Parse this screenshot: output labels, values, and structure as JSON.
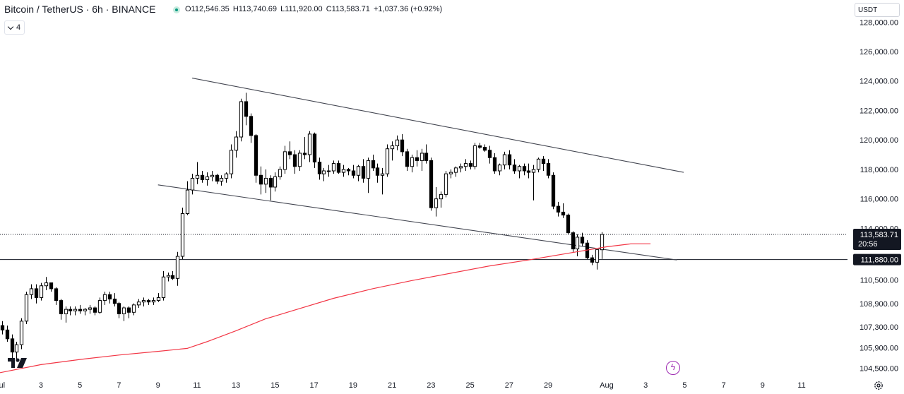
{
  "header": {
    "symbol": "Bitcoin / TetherUS · 6h · BINANCE",
    "open": "O112,546.35",
    "high": "H113,740.69",
    "low": "L111,920.00",
    "close": "C113,583.71",
    "change": "+1,037.36 (+0.92%)",
    "indicator_count": "4",
    "currency": "USDT"
  },
  "colors": {
    "up_candle": "#ffffff",
    "down_candle": "#000000",
    "moving_average": "#f23645",
    "trendline": "#434651",
    "horizontal_line": "#131722",
    "badge_bg": "#131722"
  },
  "chart_data": {
    "type": "candlestick",
    "title": "",
    "ylim": [
      104000,
      129500
    ],
    "y_ticks": [
      128000,
      126000,
      124000,
      122000,
      120000,
      118000,
      116000,
      114000,
      111880,
      110500,
      108900,
      107300,
      105900,
      104500
    ],
    "y_tick_labels": [
      "128,000.00",
      "126,000.00",
      "124,000.00",
      "122,000.00",
      "120,000.00",
      "118,000.00",
      "116,000.00",
      "114,000.00",
      "111,880.00",
      "110,500.00",
      "108,900.00",
      "107,300.00",
      "105,900.00",
      "104,500.00"
    ],
    "x_start_day": -0.1,
    "x_end_day": 43.35,
    "x_ticks": [
      {
        "day": 0,
        "label": "ul"
      },
      {
        "day": 2,
        "label": "3"
      },
      {
        "day": 4,
        "label": "5"
      },
      {
        "day": 6,
        "label": "7"
      },
      {
        "day": 8,
        "label": "9"
      },
      {
        "day": 10,
        "label": "11"
      },
      {
        "day": 12,
        "label": "13"
      },
      {
        "day": 14,
        "label": "15"
      },
      {
        "day": 16,
        "label": "17"
      },
      {
        "day": 18,
        "label": "19"
      },
      {
        "day": 20,
        "label": "21"
      },
      {
        "day": 22,
        "label": "23"
      },
      {
        "day": 24,
        "label": "25"
      },
      {
        "day": 26,
        "label": "27"
      },
      {
        "day": 28,
        "label": "29"
      },
      {
        "day": 31,
        "label": "Aug"
      },
      {
        "day": 33,
        "label": "3"
      },
      {
        "day": 35,
        "label": "5"
      },
      {
        "day": 37,
        "label": "7"
      },
      {
        "day": 39,
        "label": "9"
      },
      {
        "day": 41,
        "label": "11"
      }
    ],
    "candles_start_day": 0.0,
    "candle_step_day": 0.25,
    "candles": [
      [
        107400,
        107700,
        106800,
        107100
      ],
      [
        107100,
        107400,
        106300,
        106500
      ],
      [
        106500,
        106800,
        105200,
        105600
      ],
      [
        105600,
        106300,
        105100,
        106100
      ],
      [
        106100,
        107900,
        105800,
        107700
      ],
      [
        107700,
        109700,
        107500,
        109500
      ],
      [
        109500,
        110200,
        109200,
        109900
      ],
      [
        109900,
        110200,
        108900,
        109300
      ],
      [
        109300,
        110300,
        109100,
        110100
      ],
      [
        110100,
        110700,
        109800,
        110300
      ],
      [
        110300,
        110300,
        109700,
        109900
      ],
      [
        109900,
        110000,
        108800,
        109100
      ],
      [
        109100,
        109200,
        107800,
        108200
      ],
      [
        108200,
        108700,
        107600,
        108500
      ],
      [
        108500,
        108700,
        108100,
        108400
      ],
      [
        108400,
        108700,
        108100,
        108500
      ],
      [
        108500,
        108800,
        108200,
        108400
      ],
      [
        108400,
        108600,
        108100,
        108500
      ],
      [
        108500,
        108800,
        108200,
        108600
      ],
      [
        108600,
        108700,
        108100,
        108300
      ],
      [
        108300,
        109300,
        108200,
        109100
      ],
      [
        109100,
        109700,
        108800,
        109500
      ],
      [
        109500,
        109700,
        108900,
        109200
      ],
      [
        109200,
        109600,
        108700,
        108900
      ],
      [
        108900,
        109000,
        107900,
        108200
      ],
      [
        108200,
        108700,
        107700,
        108600
      ],
      [
        108600,
        108700,
        107900,
        108300
      ],
      [
        108300,
        108900,
        108100,
        108800
      ],
      [
        108800,
        109200,
        108600,
        109000
      ],
      [
        109000,
        109300,
        108700,
        109100
      ],
      [
        109100,
        109200,
        108800,
        109000
      ],
      [
        109000,
        109300,
        108800,
        109100
      ],
      [
        109100,
        109600,
        109000,
        109300
      ],
      [
        109300,
        111100,
        109100,
        110700
      ],
      [
        110700,
        111000,
        110400,
        110800
      ],
      [
        110800,
        111100,
        110500,
        110600
      ],
      [
        110600,
        112400,
        110100,
        112100
      ],
      [
        112100,
        115400,
        111900,
        115000
      ],
      [
        115000,
        117200,
        114900,
        116600
      ],
      [
        116600,
        117700,
        116300,
        117400
      ],
      [
        117400,
        118500,
        117000,
        117600
      ],
      [
        117600,
        117900,
        117100,
        117300
      ],
      [
        117300,
        117800,
        116900,
        117500
      ],
      [
        117500,
        117900,
        117200,
        117600
      ],
      [
        117600,
        117700,
        117000,
        117200
      ],
      [
        117200,
        117600,
        116900,
        117400
      ],
      [
        117400,
        117800,
        117100,
        117700
      ],
      [
        117700,
        119700,
        117400,
        119300
      ],
      [
        119300,
        120600,
        118800,
        120200
      ],
      [
        120200,
        122800,
        119900,
        122600
      ],
      [
        122600,
        123200,
        121000,
        121600
      ],
      [
        121600,
        121800,
        119800,
        120300
      ],
      [
        120300,
        120400,
        117100,
        117600
      ],
      [
        117600,
        118200,
        116300,
        117000
      ],
      [
        117000,
        118000,
        116400,
        117400
      ],
      [
        117400,
        117600,
        115900,
        116800
      ],
      [
        116800,
        117800,
        116500,
        117500
      ],
      [
        117500,
        118200,
        117300,
        118000
      ],
      [
        118000,
        119600,
        117700,
        119200
      ],
      [
        119200,
        119900,
        118700,
        119000
      ],
      [
        119000,
        119300,
        117700,
        118200
      ],
      [
        118200,
        119300,
        117900,
        119100
      ],
      [
        119100,
        120200,
        118700,
        119000
      ],
      [
        119000,
        120600,
        118500,
        120400
      ],
      [
        120400,
        120500,
        118100,
        118500
      ],
      [
        118500,
        118800,
        117300,
        117700
      ],
      [
        117700,
        118100,
        117200,
        117900
      ],
      [
        117900,
        118300,
        117500,
        117900
      ],
      [
        117900,
        118600,
        117700,
        118400
      ],
      [
        118400,
        118600,
        117700,
        117800
      ],
      [
        117800,
        118300,
        117500,
        118000
      ],
      [
        118000,
        118100,
        117600,
        117900
      ],
      [
        117900,
        118300,
        117400,
        117600
      ],
      [
        117600,
        118300,
        117200,
        118200
      ],
      [
        118200,
        118700,
        117100,
        117400
      ],
      [
        117400,
        118800,
        116400,
        118600
      ],
      [
        118600,
        119000,
        117900,
        118100
      ],
      [
        118100,
        118400,
        117100,
        117600
      ],
      [
        117600,
        118100,
        116300,
        117700
      ],
      [
        117700,
        119700,
        117500,
        119400
      ],
      [
        119400,
        119900,
        118600,
        119600
      ],
      [
        119600,
        120300,
        119300,
        120000
      ],
      [
        120000,
        120400,
        118900,
        119200
      ],
      [
        119200,
        119400,
        117900,
        118200
      ],
      [
        118200,
        119000,
        117800,
        118800
      ],
      [
        118800,
        119300,
        118200,
        118600
      ],
      [
        118600,
        119400,
        117900,
        119100
      ],
      [
        119100,
        119700,
        118400,
        118600
      ],
      [
        118600,
        118800,
        115200,
        115400
      ],
      [
        115400,
        116800,
        114800,
        116000
      ],
      [
        116000,
        116500,
        115400,
        116300
      ],
      [
        116300,
        117900,
        116100,
        117700
      ],
      [
        117700,
        118000,
        117400,
        117800
      ],
      [
        117800,
        118200,
        117500,
        118100
      ],
      [
        118100,
        118400,
        117800,
        118200
      ],
      [
        118200,
        118700,
        117900,
        118400
      ],
      [
        118400,
        118600,
        118000,
        118200
      ],
      [
        118200,
        119800,
        118000,
        119600
      ],
      [
        119600,
        119800,
        119400,
        119500
      ],
      [
        119500,
        119700,
        119200,
        119300
      ],
      [
        119300,
        119600,
        118400,
        118800
      ],
      [
        118800,
        119100,
        117700,
        117900
      ],
      [
        117900,
        118400,
        117600,
        118300
      ],
      [
        118300,
        119200,
        118000,
        119000
      ],
      [
        119000,
        119300,
        118000,
        118300
      ],
      [
        118300,
        118700,
        117700,
        117900
      ],
      [
        117900,
        118300,
        117400,
        118200
      ],
      [
        118200,
        118400,
        117600,
        117900
      ],
      [
        117900,
        118400,
        117400,
        117800
      ],
      [
        117800,
        118300,
        115900,
        118000
      ],
      [
        118000,
        118800,
        117800,
        118700
      ],
      [
        118700,
        118900,
        117900,
        118400
      ],
      [
        118400,
        118700,
        117400,
        117600
      ],
      [
        117600,
        117800,
        115300,
        115500
      ],
      [
        115500,
        115800,
        114800,
        115100
      ],
      [
        115100,
        115700,
        114700,
        114900
      ],
      [
        114900,
        115000,
        113600,
        113700
      ],
      [
        113700,
        113800,
        112400,
        112600
      ],
      [
        112600,
        113600,
        112100,
        113400
      ],
      [
        113400,
        113700,
        112800,
        113000
      ],
      [
        113000,
        113200,
        111900,
        112000
      ],
      [
        112000,
        112200,
        111500,
        111700
      ],
      [
        111700,
        112300,
        111200,
        112550
      ],
      [
        112546,
        113741,
        111920,
        113584
      ]
    ],
    "moving_average": {
      "name": "",
      "x_days": [
        -0.1,
        2,
        4,
        6,
        8,
        9.5,
        10.5,
        12,
        13.5,
        15,
        17,
        19,
        21,
        23,
        25,
        27,
        29,
        31,
        32.25,
        33.25
      ],
      "values": [
        104200,
        104750,
        105100,
        105400,
        105650,
        105850,
        106300,
        107050,
        107850,
        108450,
        109250,
        109900,
        110450,
        110950,
        111450,
        111850,
        112300,
        112750,
        112950,
        112950
      ]
    },
    "trendlines": [
      {
        "from": [
          9.75,
          124200
        ],
        "to": [
          34.95,
          117800
        ]
      },
      {
        "from": [
          8.0,
          116950
        ],
        "to": [
          34.6,
          111850
        ]
      }
    ],
    "horizontal_line": {
      "value": 111880,
      "label": "111,880.00"
    },
    "last_price": {
      "value": 113583.71,
      "label": "113,583.71",
      "countdown": "20:56"
    }
  }
}
